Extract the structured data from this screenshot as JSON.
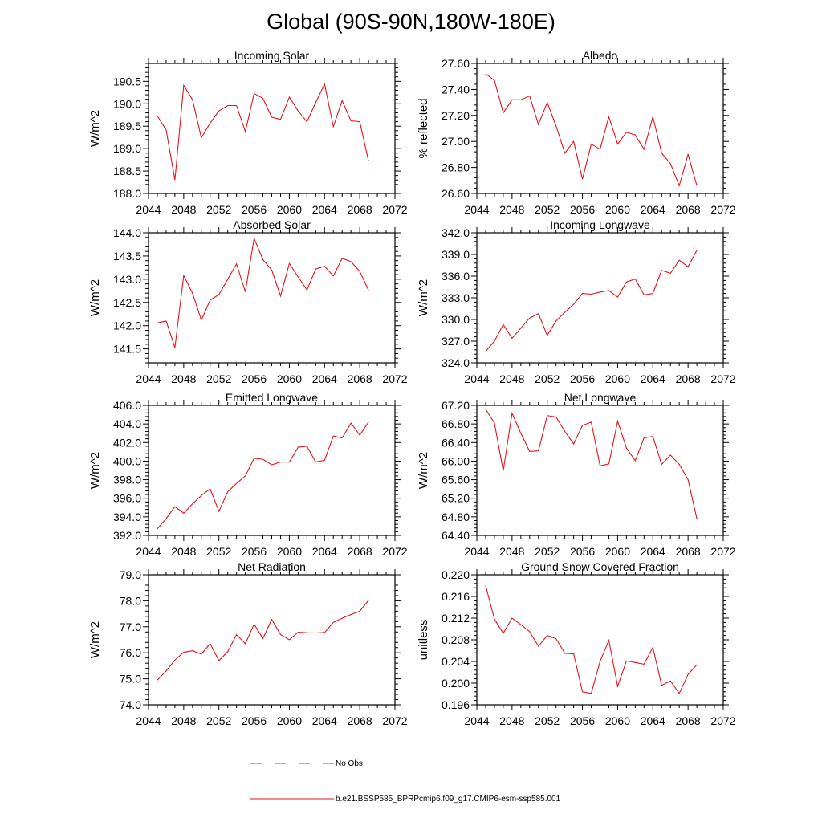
{
  "title": "Global (90S-90N,180W-180E)",
  "colors": {
    "series": "#e8131a",
    "obs": "#4f5fb5",
    "axis": "#000000"
  },
  "legend": {
    "entries": [
      {
        "label": "No Obs",
        "style": "dashed",
        "color": "#4f5fb5"
      },
      {
        "label": "b.e21.BSSP585_BPRPcmip6.f09_g17.CMIP6-esm-ssp585.001",
        "style": "solid",
        "color": "#e8131a"
      }
    ]
  },
  "chart_data": [
    {
      "type": "line",
      "title": "Incoming Solar",
      "xlabel": "",
      "ylabel": "W/m^2",
      "xlim": [
        2044,
        2072
      ],
      "ylim": [
        188.0,
        190.9
      ],
      "grid": false,
      "xticks": [
        2044,
        2048,
        2052,
        2056,
        2060,
        2064,
        2068,
        2072
      ],
      "yticks": [
        "188.0",
        "188.5",
        "189.0",
        "189.5",
        "190.0",
        "190.5"
      ],
      "x": [
        2045,
        2046,
        2047,
        2048,
        2049,
        2050,
        2051,
        2052,
        2053,
        2054,
        2055,
        2056,
        2057,
        2058,
        2059,
        2060,
        2061,
        2062,
        2063,
        2064,
        2065,
        2066,
        2067,
        2068,
        2069
      ],
      "series": [
        {
          "values": [
            189.73,
            189.42,
            188.3,
            190.41,
            190.09,
            189.24,
            189.57,
            189.84,
            189.96,
            189.96,
            189.38,
            190.23,
            190.12,
            189.7,
            189.65,
            190.15,
            189.84,
            189.6,
            190.03,
            190.44,
            189.49,
            190.07,
            189.62,
            189.6,
            188.72
          ]
        }
      ]
    },
    {
      "type": "line",
      "title": "Albedo",
      "xlabel": "",
      "ylabel": "% reflected",
      "xlim": [
        2044,
        2072
      ],
      "ylim": [
        26.6,
        27.6
      ],
      "grid": false,
      "xticks": [
        2044,
        2048,
        2052,
        2056,
        2060,
        2064,
        2068,
        2072
      ],
      "yticks": [
        "26.60",
        "26.80",
        "27.00",
        "27.20",
        "27.40",
        "27.60"
      ],
      "x": [
        2045,
        2046,
        2047,
        2048,
        2049,
        2050,
        2051,
        2052,
        2053,
        2054,
        2055,
        2056,
        2057,
        2058,
        2059,
        2060,
        2061,
        2062,
        2063,
        2064,
        2065,
        2066,
        2067,
        2068,
        2069
      ],
      "series": [
        {
          "values": [
            27.52,
            27.47,
            27.22,
            27.32,
            27.32,
            27.35,
            27.13,
            27.3,
            27.12,
            26.91,
            27.0,
            26.71,
            26.98,
            26.94,
            27.19,
            26.98,
            27.07,
            27.05,
            26.94,
            27.19,
            26.91,
            26.83,
            26.66,
            26.9,
            26.66
          ]
        }
      ]
    },
    {
      "type": "line",
      "title": "Absorbed Solar",
      "xlabel": "",
      "ylabel": "W/m^2",
      "xlim": [
        2044,
        2072
      ],
      "ylim": [
        141.2,
        144.0
      ],
      "grid": false,
      "xticks": [
        2044,
        2048,
        2052,
        2056,
        2060,
        2064,
        2068,
        2072
      ],
      "yticks": [
        "141.5",
        "142.0",
        "142.5",
        "143.0",
        "143.5",
        "144.0"
      ],
      "x": [
        2045,
        2046,
        2047,
        2048,
        2049,
        2050,
        2051,
        2052,
        2053,
        2054,
        2055,
        2056,
        2057,
        2058,
        2059,
        2060,
        2061,
        2062,
        2063,
        2064,
        2065,
        2066,
        2067,
        2068,
        2069
      ],
      "series": [
        {
          "values": [
            142.06,
            142.1,
            141.53,
            143.08,
            142.7,
            142.12,
            142.55,
            142.67,
            143.0,
            143.33,
            142.73,
            143.88,
            143.42,
            143.2,
            142.64,
            143.34,
            143.05,
            142.77,
            143.22,
            143.28,
            143.07,
            143.45,
            143.38,
            143.17,
            142.76
          ]
        }
      ]
    },
    {
      "type": "line",
      "title": "Incoming Longwave",
      "xlabel": "",
      "ylabel": "W/m^2",
      "xlim": [
        2044,
        2072
      ],
      "ylim": [
        324.0,
        342.0
      ],
      "grid": false,
      "xticks": [
        2044,
        2048,
        2052,
        2056,
        2060,
        2064,
        2068,
        2072
      ],
      "yticks": [
        "324.0",
        "327.0",
        "330.0",
        "333.0",
        "336.0",
        "339.0",
        "342.0"
      ],
      "x": [
        2045,
        2046,
        2047,
        2048,
        2049,
        2050,
        2051,
        2052,
        2053,
        2054,
        2055,
        2056,
        2057,
        2058,
        2059,
        2060,
        2061,
        2062,
        2063,
        2064,
        2065,
        2066,
        2067,
        2068,
        2069
      ],
      "series": [
        {
          "values": [
            325.6,
            327.0,
            329.3,
            327.4,
            328.8,
            330.2,
            330.8,
            327.8,
            329.8,
            331.0,
            332.1,
            333.6,
            333.5,
            333.8,
            334.0,
            333.1,
            335.2,
            335.6,
            333.4,
            333.6,
            336.8,
            336.4,
            338.2,
            337.3,
            339.6
          ]
        }
      ]
    },
    {
      "type": "line",
      "title": "Emitted Longwave",
      "xlabel": "",
      "ylabel": "W/m^2",
      "xlim": [
        2044,
        2072
      ],
      "ylim": [
        392.0,
        406.0
      ],
      "grid": false,
      "xticks": [
        2044,
        2048,
        2052,
        2056,
        2060,
        2064,
        2068,
        2072
      ],
      "yticks": [
        "392.0",
        "394.0",
        "396.0",
        "398.0",
        "400.0",
        "402.0",
        "404.0",
        "406.0"
      ],
      "x": [
        2045,
        2046,
        2047,
        2048,
        2049,
        2050,
        2051,
        2052,
        2053,
        2054,
        2055,
        2056,
        2057,
        2058,
        2059,
        2060,
        2061,
        2062,
        2063,
        2064,
        2065,
        2066,
        2067,
        2068,
        2069
      ],
      "series": [
        {
          "values": [
            392.7,
            393.8,
            395.1,
            394.4,
            395.4,
            396.3,
            397.0,
            394.6,
            396.7,
            397.6,
            398.4,
            400.3,
            400.2,
            399.6,
            399.9,
            399.9,
            401.5,
            401.6,
            399.9,
            400.1,
            402.7,
            402.5,
            404.1,
            402.8,
            404.2
          ]
        }
      ]
    },
    {
      "type": "line",
      "title": "Net Longwave",
      "xlabel": "",
      "ylabel": "W/m^2",
      "xlim": [
        2044,
        2072
      ],
      "ylim": [
        64.4,
        67.2
      ],
      "grid": false,
      "xticks": [
        2044,
        2048,
        2052,
        2056,
        2060,
        2064,
        2068,
        2072
      ],
      "yticks": [
        "64.40",
        "64.80",
        "65.20",
        "65.60",
        "66.00",
        "66.40",
        "66.80",
        "67.20"
      ],
      "x": [
        2045,
        2046,
        2047,
        2048,
        2049,
        2050,
        2051,
        2052,
        2053,
        2054,
        2055,
        2056,
        2057,
        2058,
        2059,
        2060,
        2061,
        2062,
        2063,
        2064,
        2065,
        2066,
        2067,
        2068,
        2069
      ],
      "series": [
        {
          "values": [
            67.12,
            66.82,
            65.79,
            67.03,
            66.6,
            66.21,
            66.22,
            66.98,
            66.95,
            66.64,
            66.37,
            66.77,
            66.84,
            65.9,
            65.94,
            66.86,
            66.28,
            66.01,
            66.5,
            66.53,
            65.93,
            66.13,
            65.93,
            65.6,
            64.76
          ]
        }
      ]
    },
    {
      "type": "line",
      "title": "Net Radiation",
      "xlabel": "",
      "ylabel": "W/m^2",
      "xlim": [
        2044,
        2072
      ],
      "ylim": [
        74.0,
        79.0
      ],
      "grid": false,
      "xticks": [
        2044,
        2048,
        2052,
        2056,
        2060,
        2064,
        2068,
        2072
      ],
      "yticks": [
        "74.0",
        "75.0",
        "76.0",
        "77.0",
        "78.0",
        "79.0"
      ],
      "x": [
        2045,
        2046,
        2047,
        2048,
        2049,
        2050,
        2051,
        2052,
        2053,
        2054,
        2055,
        2056,
        2057,
        2058,
        2059,
        2060,
        2061,
        2062,
        2063,
        2064,
        2065,
        2066,
        2067,
        2068,
        2069
      ],
      "series": [
        {
          "values": [
            74.95,
            75.3,
            75.72,
            76.02,
            76.08,
            75.95,
            76.35,
            75.7,
            76.04,
            76.7,
            76.35,
            77.1,
            76.55,
            77.28,
            76.7,
            76.5,
            76.79,
            76.77,
            76.76,
            76.78,
            77.17,
            77.33,
            77.47,
            77.6,
            78.02
          ]
        }
      ]
    },
    {
      "type": "line",
      "title": "Ground Snow Covered Fraction",
      "xlabel": "",
      "ylabel": "unitless",
      "xlim": [
        2044,
        2072
      ],
      "ylim": [
        0.196,
        0.22
      ],
      "grid": false,
      "xticks": [
        2044,
        2048,
        2052,
        2056,
        2060,
        2064,
        2068,
        2072
      ],
      "yticks": [
        "0.196",
        "0.200",
        "0.204",
        "0.208",
        "0.212",
        "0.216",
        "0.220"
      ],
      "x": [
        2045,
        2046,
        2047,
        2048,
        2049,
        2050,
        2051,
        2052,
        2053,
        2054,
        2055,
        2056,
        2057,
        2058,
        2059,
        2060,
        2061,
        2062,
        2063,
        2064,
        2065,
        2066,
        2067,
        2068,
        2069
      ],
      "series": [
        {
          "values": [
            0.218,
            0.2118,
            0.2092,
            0.212,
            0.2108,
            0.2095,
            0.2068,
            0.2088,
            0.2082,
            0.2055,
            0.2054,
            0.1984,
            0.1981,
            0.204,
            0.2079,
            0.1994,
            0.2041,
            0.2038,
            0.2035,
            0.2066,
            0.1996,
            0.2004,
            0.1981,
            0.2016,
            0.2034
          ]
        }
      ]
    }
  ]
}
